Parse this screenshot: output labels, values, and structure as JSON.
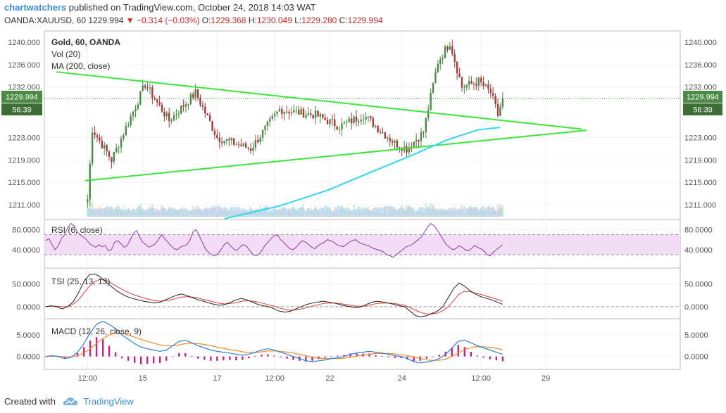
{
  "header": {
    "user": "chartwatchers",
    "published": "published on TradingView.com, October 24, 2018 14:03 WAT",
    "symbol": "OANDA:XAUUSD, 60",
    "last": "1229.994",
    "change": "▼ −0.314 (−0.03%)",
    "o_label": "O:",
    "o_val": "1229.368",
    "h_label": "H:",
    "h_val": "1230.049",
    "l_label": "L:",
    "l_val": "1229.280",
    "c_label": "C:",
    "c_val": "1229.994"
  },
  "panel_labels": {
    "title": "Gold, 60, OANDA",
    "vol": "Vol (20)",
    "ma": "MA (200, close)",
    "rsi": "RSI (6, close)",
    "tsi": "TSI (25, 13, 13)",
    "macd": "MACD (12, 26, close, 9)"
  },
  "price_tag": {
    "price": "1229.994",
    "countdown": "56:39"
  },
  "footer": {
    "created_with": "Created with",
    "brand": "TradingView"
  },
  "colors": {
    "up": "#4a8a43",
    "down": "#a33b3b",
    "trendline": "#39e639",
    "ma": "#33d6f0",
    "volume": "#9ecbea",
    "rsi": "#8c3c9c",
    "rsi_band": "#f3dcf6",
    "tsi": "#222222",
    "tsi_signal": "#e23d3d",
    "macd_line": "#2f7fe0",
    "macd_signal": "#f08a2a",
    "macd_hist": "#c21f8f"
  },
  "chart_data": [
    {
      "type": "candlestick",
      "title": "Gold, 60, OANDA",
      "x_ticks": [
        "12:00",
        "15",
        "17",
        "12:00",
        "22",
        "24",
        "12:00",
        "29"
      ],
      "y_ticks": [
        "1240.000",
        "1236.000",
        "1232.000",
        "1223.000",
        "1219.000",
        "1215.000",
        "1211.000"
      ],
      "ylim": [
        1208.5,
        1242
      ],
      "key_points": [
        {
          "t": 0,
          "price": 1212.0
        },
        {
          "t": 2,
          "price": 1224.5
        },
        {
          "t": 10,
          "price": 1219.0
        },
        {
          "t": 24,
          "price": 1232.5
        },
        {
          "t": 34,
          "price": 1226.0
        },
        {
          "t": 45,
          "price": 1231.0
        },
        {
          "t": 54,
          "price": 1223.0
        },
        {
          "t": 68,
          "price": 1221.0
        },
        {
          "t": 80,
          "price": 1228.0
        },
        {
          "t": 95,
          "price": 1227.0
        },
        {
          "t": 105,
          "price": 1225.0
        },
        {
          "t": 115,
          "price": 1227.0
        },
        {
          "t": 128,
          "price": 1222.0
        },
        {
          "t": 133,
          "price": 1221.0
        },
        {
          "t": 140,
          "price": 1224.0
        },
        {
          "t": 146,
          "price": 1236.5
        },
        {
          "t": 151,
          "price": 1240.0
        },
        {
          "t": 156,
          "price": 1232.0
        },
        {
          "t": 163,
          "price": 1233.0
        },
        {
          "t": 168,
          "price": 1231.0
        },
        {
          "t": 171,
          "price": 1227.0
        },
        {
          "t": 173,
          "price": 1229.994
        }
      ],
      "trendlines": [
        {
          "name": "upper",
          "from": [
            -13,
            1234.7
          ],
          "to": [
            206,
            1224.5
          ]
        },
        {
          "name": "lower",
          "from": [
            -1,
            1215.3
          ],
          "to": [
            208,
            1224.3
          ]
        }
      ],
      "ma_200": [
        {
          "t": 57,
          "price": 1208.5
        },
        {
          "t": 80,
          "price": 1210.8
        },
        {
          "t": 100,
          "price": 1213.6
        },
        {
          "t": 118,
          "price": 1216.8
        },
        {
          "t": 135,
          "price": 1219.8
        },
        {
          "t": 150,
          "price": 1222.6
        },
        {
          "t": 163,
          "price": 1224.4
        },
        {
          "t": 172,
          "price": 1224.8
        }
      ]
    },
    {
      "type": "line",
      "title": "RSI (6, close)",
      "y_ticks": [
        "80.0000",
        "40.0000"
      ],
      "ylim": [
        5,
        100
      ],
      "band": [
        30,
        70
      ],
      "values": [
        58,
        62,
        50,
        40,
        48,
        62,
        70,
        84,
        92,
        88,
        76,
        70,
        65,
        60,
        52,
        48,
        45,
        50,
        46,
        48,
        38,
        40,
        55,
        58,
        52,
        45,
        48,
        60,
        72,
        78,
        65,
        55,
        50,
        45,
        48,
        52,
        60,
        70,
        62,
        55,
        48,
        42,
        40,
        45,
        48,
        50,
        58,
        75,
        80,
        68,
        55,
        42,
        35,
        30,
        28,
        32,
        40,
        50,
        55,
        48,
        42,
        38,
        45,
        50,
        48,
        40,
        32,
        28,
        30,
        38,
        48,
        55,
        62,
        68,
        70,
        60,
        55,
        48,
        42,
        40,
        45,
        52,
        58,
        55,
        50,
        45,
        42,
        48,
        52,
        55,
        60,
        58,
        55,
        50,
        48,
        46,
        50,
        55,
        58,
        60,
        55,
        52,
        50,
        48,
        45,
        42,
        40,
        38,
        35,
        30,
        28,
        25,
        30,
        35,
        40,
        45,
        48,
        50,
        55,
        60,
        65,
        75,
        85,
        92,
        88,
        80,
        70,
        60,
        50,
        45,
        40,
        42,
        48,
        45,
        40,
        38,
        42,
        48,
        45,
        42,
        38,
        30,
        28,
        35,
        40,
        45,
        50
      ]
    },
    {
      "type": "line",
      "title": "TSI (25, 13, 13)",
      "y_ticks": [
        "50.0000",
        "0.0000"
      ],
      "ylim": [
        -25,
        85
      ],
      "series": [
        {
          "role": "tsi",
          "values": [
            0,
            2,
            0,
            -5,
            0,
            10,
            30,
            55,
            70,
            72,
            66,
            55,
            45,
            35,
            28,
            22,
            18,
            15,
            12,
            10,
            8,
            10,
            15,
            20,
            25,
            28,
            24,
            20,
            15,
            12,
            8,
            5,
            3,
            5,
            10,
            15,
            18,
            15,
            10,
            5,
            2,
            0,
            -5,
            -10,
            -12,
            -10,
            -5,
            0,
            5,
            8,
            10,
            12,
            10,
            8,
            5,
            2,
            0,
            -2,
            0,
            5,
            10,
            12,
            10,
            8,
            5,
            2,
            0,
            -10,
            -20,
            -22,
            -20,
            -15,
            -10,
            0,
            20,
            40,
            52,
            45,
            35,
            28,
            22,
            18,
            15,
            10,
            5
          ]
        },
        {
          "role": "signal",
          "values": [
            0,
            1,
            1,
            0,
            0,
            5,
            15,
            30,
            45,
            55,
            60,
            58,
            52,
            45,
            38,
            32,
            27,
            23,
            19,
            16,
            13,
            12,
            13,
            15,
            18,
            21,
            22,
            21,
            19,
            16,
            13,
            10,
            7,
            6,
            7,
            9,
            12,
            13,
            12,
            10,
            7,
            4,
            1,
            -3,
            -6,
            -8,
            -7,
            -5,
            -2,
            1,
            4,
            7,
            8,
            8,
            7,
            5,
            3,
            1,
            1,
            2,
            5,
            7,
            8,
            8,
            7,
            5,
            3,
            -2,
            -8,
            -13,
            -16,
            -16,
            -14,
            -9,
            0,
            14,
            28,
            34,
            33,
            30,
            27,
            23,
            20,
            16,
            12
          ]
        }
      ]
    },
    {
      "type": "line",
      "title": "MACD (12, 26, close, 9)",
      "y_ticks": [
        "5.0000",
        "0.0000"
      ],
      "ylim": [
        -3,
        8.8
      ],
      "series": [
        {
          "role": "macd",
          "values": [
            0,
            0.2,
            0,
            -0.5,
            -0.2,
            1,
            3,
            5.5,
            7.5,
            8.2,
            7.5,
            6.5,
            5,
            4,
            3,
            2.2,
            1.8,
            1.5,
            1.2,
            1.5,
            2.5,
            3.5,
            3.8,
            3.2,
            2.5,
            2,
            1.5,
            1.2,
            1,
            0.8,
            0.5,
            0.3,
            0.5,
            1,
            1.5,
            1.8,
            1.5,
            1,
            0.5,
            0,
            -0.5,
            -1,
            -1.2,
            -1,
            -0.8,
            -0.5,
            -0.3,
            0,
            0.5,
            0.8,
            1,
            1.2,
            1,
            0.8,
            0.5,
            0.2,
            0,
            -0.5,
            -1.2,
            -1.5,
            -1.3,
            -1,
            -0.5,
            0.5,
            2,
            3.5,
            3.8,
            3.2,
            2.5,
            2,
            1.5,
            1,
            0.5
          ]
        },
        {
          "role": "signal",
          "values": [
            0,
            0.05,
            0.05,
            -0.1,
            -0.1,
            0.2,
            0.8,
            1.8,
            3,
            4.2,
            5,
            5.5,
            5.4,
            5,
            4.5,
            4,
            3.5,
            3.1,
            2.7,
            2.5,
            2.5,
            2.7,
            3,
            3.1,
            3,
            2.8,
            2.5,
            2.2,
            1.9,
            1.6,
            1.4,
            1.1,
            0.9,
            0.9,
            1.1,
            1.3,
            1.3,
            1.2,
            1,
            0.8,
            0.5,
            0.2,
            -0.2,
            -0.4,
            -0.5,
            -0.5,
            -0.5,
            -0.4,
            -0.2,
            0.1,
            0.3,
            0.5,
            0.7,
            0.7,
            0.7,
            0.6,
            0.4,
            0.2,
            -0.1,
            -0.5,
            -0.8,
            -0.9,
            -0.9,
            -0.6,
            0,
            0.8,
            1.6,
            2.1,
            2.3,
            2.3,
            2.1,
            1.9,
            1.6
          ]
        }
      ]
    }
  ]
}
